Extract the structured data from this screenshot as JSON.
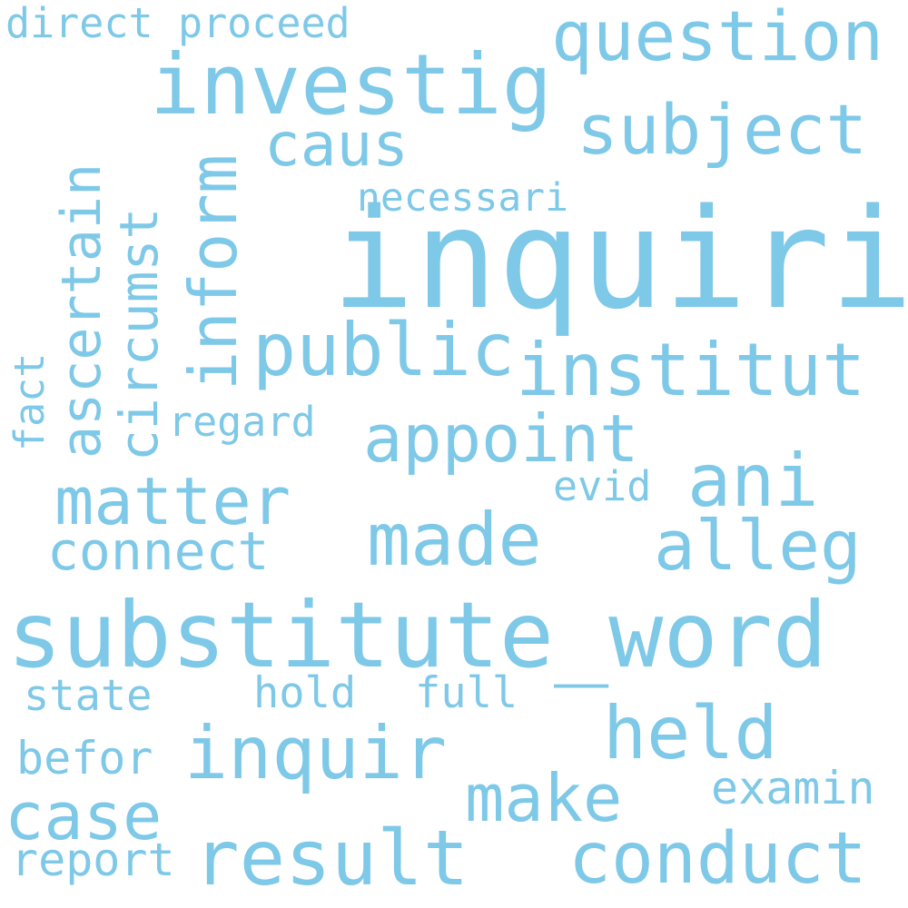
{
  "colors": {
    "background": "#ffffff",
    "word": "#7ec8e8"
  },
  "words": {
    "inquiri": "inquiri",
    "substitute_word": "substitute_word",
    "investig": "investig",
    "question": "question",
    "subject": "subject",
    "caus": "caus",
    "necessari": "necessari",
    "public": "public",
    "institut": "institut",
    "appoint": "appoint",
    "ani": "ani",
    "matter": "matter",
    "made": "made",
    "alleg": "alleg",
    "connect": "connect",
    "evid": "evid",
    "regard": "regard",
    "direct": "direct",
    "proceed": "proceed",
    "ascertain": "ascertain",
    "circumst": "circumst",
    "inform": "inform",
    "fact": "fact",
    "state": "state",
    "hold": "hold",
    "full": "full",
    "held": "held",
    "befor": "befor",
    "inquir": "inquir",
    "case": "case",
    "make": "make",
    "examin": "examin",
    "report": "report",
    "result": "result",
    "conduct": "conduct"
  }
}
